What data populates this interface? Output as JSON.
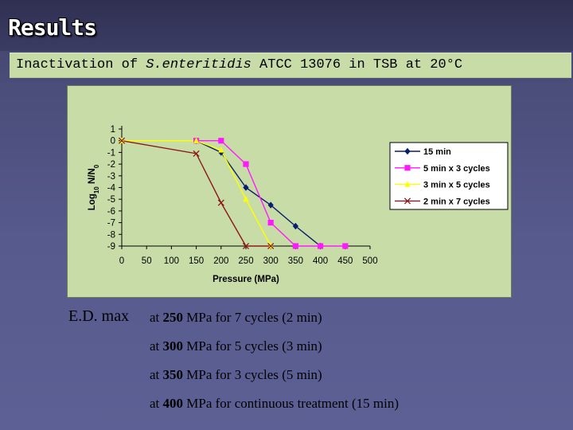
{
  "slide": {
    "title": "Results",
    "subtitle_prefix": "Inactivation of ",
    "subtitle_organism": "S.enteritidis",
    "subtitle_suffix": " ATCC 13076 in TSB at 20°C"
  },
  "notes": {
    "label": "E.D. max",
    "lines": [
      {
        "prefix": "at ",
        "value": "250",
        "rest": " MPa for 7 cycles (2 min)"
      },
      {
        "prefix": "at ",
        "value": "300",
        "rest": " MPa for 5 cycles (3 min)"
      },
      {
        "prefix": "at ",
        "value": "350",
        "rest": " MPa for 3 cycles (5 min)"
      },
      {
        "prefix": "at ",
        "value": "400",
        "rest": " MPa for continuous treatment (15 min)"
      }
    ]
  },
  "chart_data": {
    "type": "line",
    "title": "",
    "xlabel": "Pressure (MPa)",
    "ylabel": "Log10 N/N0",
    "xlim": [
      0,
      500
    ],
    "ylim": [
      -9,
      1
    ],
    "xticks": [
      0,
      50,
      100,
      150,
      200,
      250,
      300,
      350,
      400,
      450,
      500
    ],
    "yticks": [
      1,
      0,
      -1,
      -2,
      -3,
      -4,
      -5,
      -6,
      -7,
      -8,
      -9
    ],
    "grid": false,
    "legend_position": "right",
    "series": [
      {
        "name": "15 min",
        "color": "#0a1e6e",
        "marker": "diamond",
        "points": [
          [
            150,
            0
          ],
          [
            200,
            -1
          ],
          [
            250,
            -4
          ],
          [
            300,
            -5.5
          ],
          [
            350,
            -7.3
          ],
          [
            400,
            -9
          ]
        ]
      },
      {
        "name": "5 min x 3 cycles",
        "color": "#ff19ff",
        "marker": "square",
        "points": [
          [
            150,
            0
          ],
          [
            200,
            0
          ],
          [
            250,
            -2
          ],
          [
            300,
            -7
          ],
          [
            350,
            -9
          ],
          [
            400,
            -9
          ],
          [
            450,
            -9
          ]
        ]
      },
      {
        "name": "3 min x 5 cycles",
        "color": "#ffff00",
        "marker": "triangle",
        "points": [
          [
            0,
            0
          ],
          [
            150,
            0
          ],
          [
            200,
            -0.8
          ],
          [
            250,
            -5
          ],
          [
            300,
            -9
          ]
        ]
      },
      {
        "name": "2 min x 7 cycles",
        "color": "#8b1a1a",
        "marker": "x",
        "points": [
          [
            0,
            0
          ],
          [
            150,
            -1.1
          ],
          [
            200,
            -5.3
          ],
          [
            250,
            -9
          ],
          [
            300,
            -9
          ]
        ]
      }
    ]
  }
}
